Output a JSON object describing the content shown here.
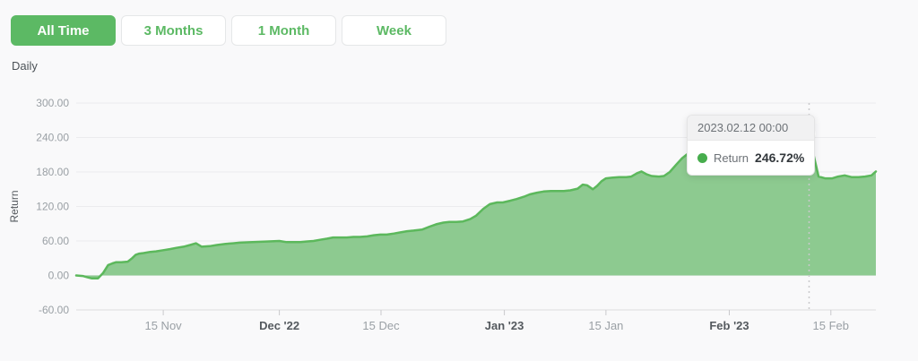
{
  "toolbar": {
    "buttons": [
      {
        "label": "All Time",
        "active": true
      },
      {
        "label": "3 Months",
        "active": false
      },
      {
        "label": "1 Month",
        "active": false
      },
      {
        "label": "Week",
        "active": false
      }
    ]
  },
  "frequency_label": "Daily",
  "tooltip": {
    "header": "2023.02.12 00:00",
    "series_label": "Return",
    "value": "246.72%"
  },
  "colors": {
    "accent_green": "#5cb964",
    "area_fill": "#8dca90",
    "line_green": "#5cb85c",
    "marker_green": "#47ad4d",
    "grid": "#ececee",
    "axis": "#dddddf",
    "tick_color": "#c9c9cc",
    "tick_text": "#9aa0a5",
    "tick_text_emphasis": "#54595e",
    "dotted_guide": "#c9c9cc"
  },
  "chart_data": {
    "type": "area",
    "title": "",
    "xlabel": "",
    "ylabel": "Return",
    "grid": true,
    "legend": false,
    "ylim": [
      -60,
      300
    ],
    "x_domain": [
      0,
      110.2
    ],
    "y_ticks": [
      {
        "v": 300,
        "label": "300.00"
      },
      {
        "v": 240,
        "label": "240.00"
      },
      {
        "v": 180,
        "label": "180.00"
      },
      {
        "v": 120,
        "label": "120.00"
      },
      {
        "v": 60,
        "label": "60.00"
      },
      {
        "v": 0,
        "label": "0.00"
      },
      {
        "v": -60,
        "label": "-60.00"
      }
    ],
    "x_ticks": [
      {
        "d": 12,
        "label": "15 Nov",
        "emphasis": false
      },
      {
        "d": 28,
        "label": "Dec '22",
        "emphasis": true
      },
      {
        "d": 42,
        "label": "15 Dec",
        "emphasis": false
      },
      {
        "d": 59,
        "label": "Jan '23",
        "emphasis": true
      },
      {
        "d": 73,
        "label": "15 Jan",
        "emphasis": false
      },
      {
        "d": 90,
        "label": "Feb '23",
        "emphasis": true
      },
      {
        "d": 104,
        "label": "15 Feb",
        "emphasis": false
      }
    ],
    "series": [
      {
        "name": "Return",
        "points": [
          [
            0,
            0
          ],
          [
            0.9,
            -1
          ],
          [
            1.5,
            -3
          ],
          [
            2.1,
            -5
          ],
          [
            3,
            -5
          ],
          [
            3.7,
            4
          ],
          [
            4.4,
            18
          ],
          [
            5,
            21
          ],
          [
            5.5,
            23
          ],
          [
            6.2,
            23
          ],
          [
            7.1,
            24
          ],
          [
            7.7,
            30
          ],
          [
            8.2,
            36
          ],
          [
            8.7,
            38
          ],
          [
            9.3,
            39
          ],
          [
            10.2,
            41
          ],
          [
            11,
            42
          ],
          [
            12,
            44
          ],
          [
            13,
            46
          ],
          [
            13.8,
            48
          ],
          [
            14.8,
            50
          ],
          [
            15.7,
            53
          ],
          [
            16.5,
            56
          ],
          [
            17.3,
            50
          ],
          [
            18.4,
            51
          ],
          [
            19.4,
            53
          ],
          [
            20.6,
            55
          ],
          [
            21.6,
            56
          ],
          [
            22.5,
            57
          ],
          [
            24.3,
            58
          ],
          [
            26.2,
            59
          ],
          [
            28,
            60
          ],
          [
            29,
            58
          ],
          [
            30.9,
            58
          ],
          [
            31.7,
            59
          ],
          [
            32.7,
            60
          ],
          [
            33.6,
            62
          ],
          [
            34.6,
            64
          ],
          [
            35.4,
            66
          ],
          [
            37.3,
            66
          ],
          [
            38.2,
            67
          ],
          [
            39.1,
            67
          ],
          [
            40.1,
            68
          ],
          [
            41,
            70
          ],
          [
            41.9,
            71
          ],
          [
            42.8,
            71
          ],
          [
            43.8,
            73
          ],
          [
            44.7,
            75
          ],
          [
            45.6,
            77
          ],
          [
            46.5,
            78
          ],
          [
            47.7,
            80
          ],
          [
            48.7,
            85
          ],
          [
            49.6,
            89
          ],
          [
            50.6,
            92
          ],
          [
            51.4,
            93
          ],
          [
            52.4,
            93
          ],
          [
            53.3,
            94
          ],
          [
            54.3,
            98
          ],
          [
            55.1,
            104
          ],
          [
            56.1,
            116
          ],
          [
            57,
            124
          ],
          [
            58,
            127
          ],
          [
            58.8,
            127
          ],
          [
            59.8,
            130
          ],
          [
            60.7,
            133
          ],
          [
            61.7,
            137
          ],
          [
            62.5,
            141
          ],
          [
            63.5,
            144
          ],
          [
            64.4,
            146
          ],
          [
            65.4,
            147
          ],
          [
            67.2,
            147
          ],
          [
            68.1,
            148
          ],
          [
            69.1,
            151
          ],
          [
            69.8,
            158
          ],
          [
            70.4,
            157
          ],
          [
            71.2,
            150
          ],
          [
            71.8,
            156
          ],
          [
            72.4,
            164
          ],
          [
            73,
            169
          ],
          [
            73.8,
            170
          ],
          [
            74.8,
            171
          ],
          [
            75.8,
            171
          ],
          [
            76.5,
            172
          ],
          [
            77.3,
            178
          ],
          [
            77.9,
            181
          ],
          [
            78.6,
            176
          ],
          [
            79.3,
            173
          ],
          [
            80.3,
            172
          ],
          [
            81,
            173
          ],
          [
            81.8,
            180
          ],
          [
            82.7,
            193
          ],
          [
            83.5,
            204
          ],
          [
            84.3,
            212
          ],
          [
            85.2,
            220
          ],
          [
            86,
            226
          ],
          [
            86.9,
            230
          ],
          [
            87.7,
            228
          ],
          [
            88.6,
            232
          ],
          [
            89.4,
            235
          ],
          [
            90.2,
            237
          ],
          [
            91.2,
            235
          ],
          [
            92.1,
            238
          ],
          [
            93.1,
            240
          ],
          [
            93.9,
            238
          ],
          [
            94.9,
            240
          ],
          [
            95.8,
            242
          ],
          [
            96.8,
            241
          ],
          [
            97.6,
            242
          ],
          [
            98.6,
            243
          ],
          [
            99.5,
            244
          ],
          [
            100.3,
            245
          ],
          [
            101,
            246.72
          ],
          [
            101.7,
            205
          ],
          [
            102.3,
            172
          ],
          [
            103.2,
            169
          ],
          [
            104.2,
            169
          ],
          [
            105,
            172
          ],
          [
            105.9,
            174
          ],
          [
            106.9,
            171
          ],
          [
            107.8,
            171
          ],
          [
            108.7,
            172
          ],
          [
            109.6,
            174
          ],
          [
            110.2,
            181
          ]
        ]
      }
    ],
    "marker": {
      "d": 101,
      "v": 246.72,
      "date_label": "2023.02.12 00:00",
      "value_label": "246.72%"
    }
  }
}
